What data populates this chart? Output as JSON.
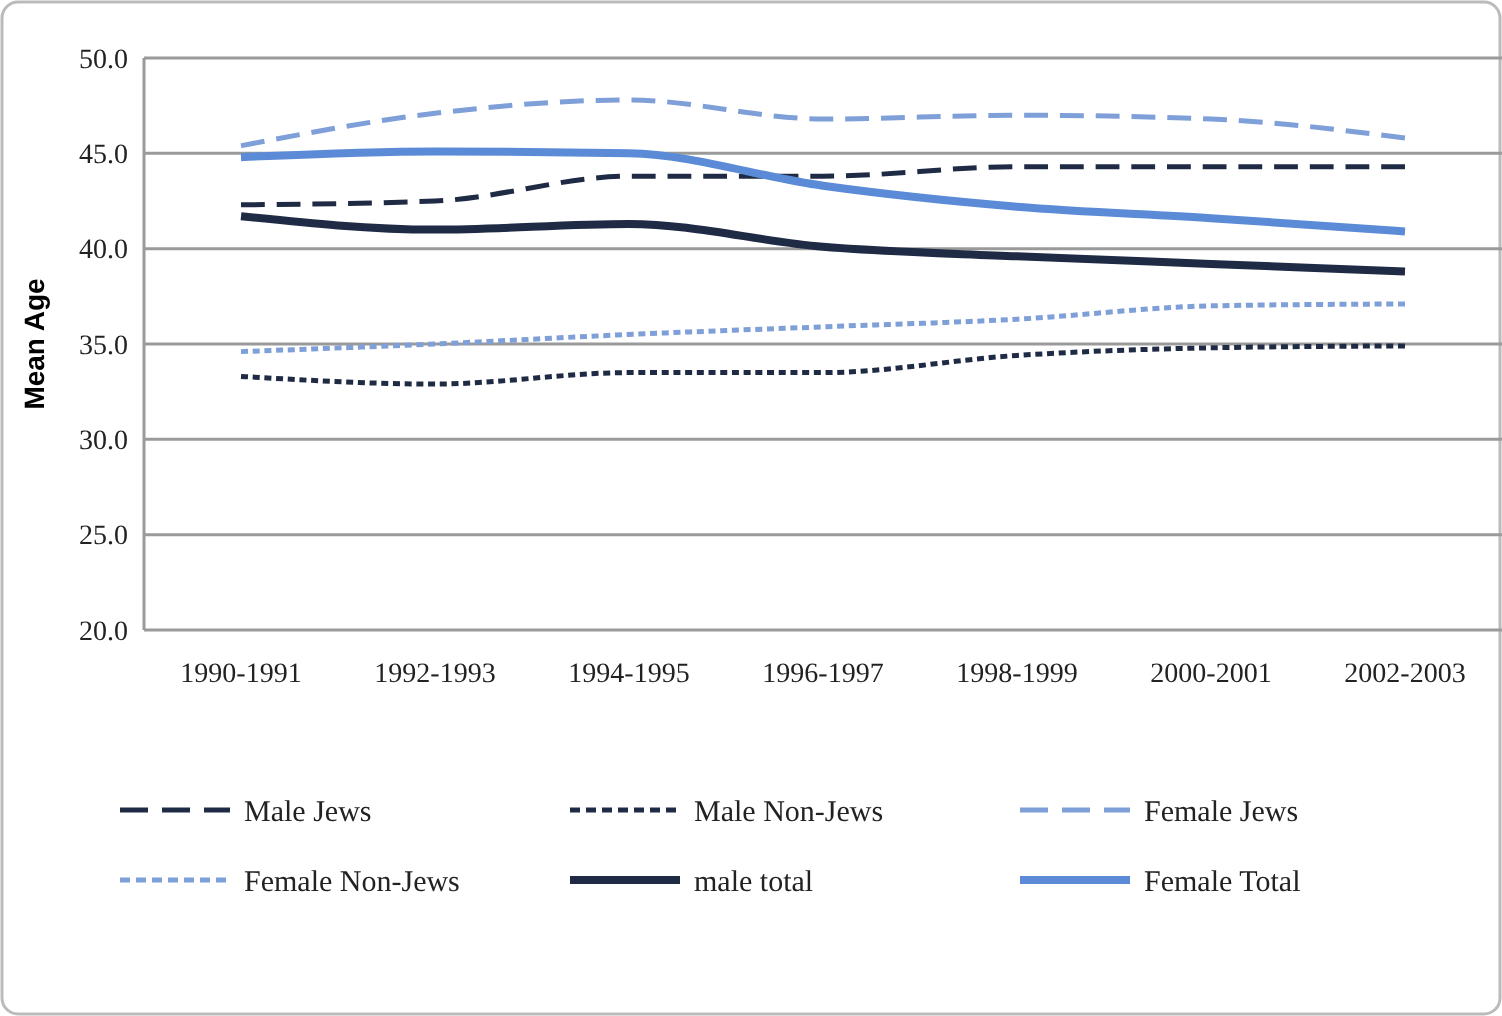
{
  "chart_data": {
    "type": "line",
    "ylabel": "Mean Age",
    "categories": [
      "1990-1991",
      "1992-1993",
      "1994-1995",
      "1996-1997",
      "1998-1999",
      "2000-2001",
      "2002-2003"
    ],
    "ylim": [
      20,
      50
    ],
    "yticks": [
      {
        "value": 20,
        "label": "20.0"
      },
      {
        "value": 25,
        "label": "25.0"
      },
      {
        "value": 30,
        "label": "30.0"
      },
      {
        "value": 35,
        "label": "35.0"
      },
      {
        "value": 40,
        "label": "40.0"
      },
      {
        "value": 45,
        "label": "45.0"
      },
      {
        "value": 50,
        "label": "50.0"
      }
    ],
    "grid": "y",
    "legend": "bottom",
    "series": [
      {
        "name": "Male Jews",
        "color": "#1f2a44",
        "line_style": "dashed",
        "values": [
          42.3,
          42.5,
          43.8,
          43.8,
          44.3,
          44.3,
          44.3
        ]
      },
      {
        "name": "Male Non-Jews",
        "color": "#1f2a44",
        "line_style": "dotted",
        "values": [
          33.3,
          32.9,
          33.5,
          33.5,
          34.4,
          34.8,
          34.9
        ]
      },
      {
        "name": "Female Jews",
        "color": "#7f9fd8",
        "line_style": "dashed",
        "values": [
          45.4,
          47.1,
          47.8,
          46.8,
          47.0,
          46.8,
          45.8
        ]
      },
      {
        "name": "Female Non-Jews",
        "color": "#7f9fd8",
        "line_style": "dotted",
        "values": [
          34.6,
          35.0,
          35.5,
          35.9,
          36.3,
          37.0,
          37.1
        ]
      },
      {
        "name": "male total",
        "color": "#1f2a44",
        "line_style": "solid",
        "values": [
          41.7,
          41.0,
          41.3,
          40.1,
          39.6,
          39.2,
          38.8
        ]
      },
      {
        "name": "Female Total",
        "color": "#5b8bd6",
        "line_style": "solid",
        "values": [
          44.8,
          45.1,
          45.0,
          43.3,
          42.2,
          41.6,
          40.9
        ]
      }
    ]
  }
}
